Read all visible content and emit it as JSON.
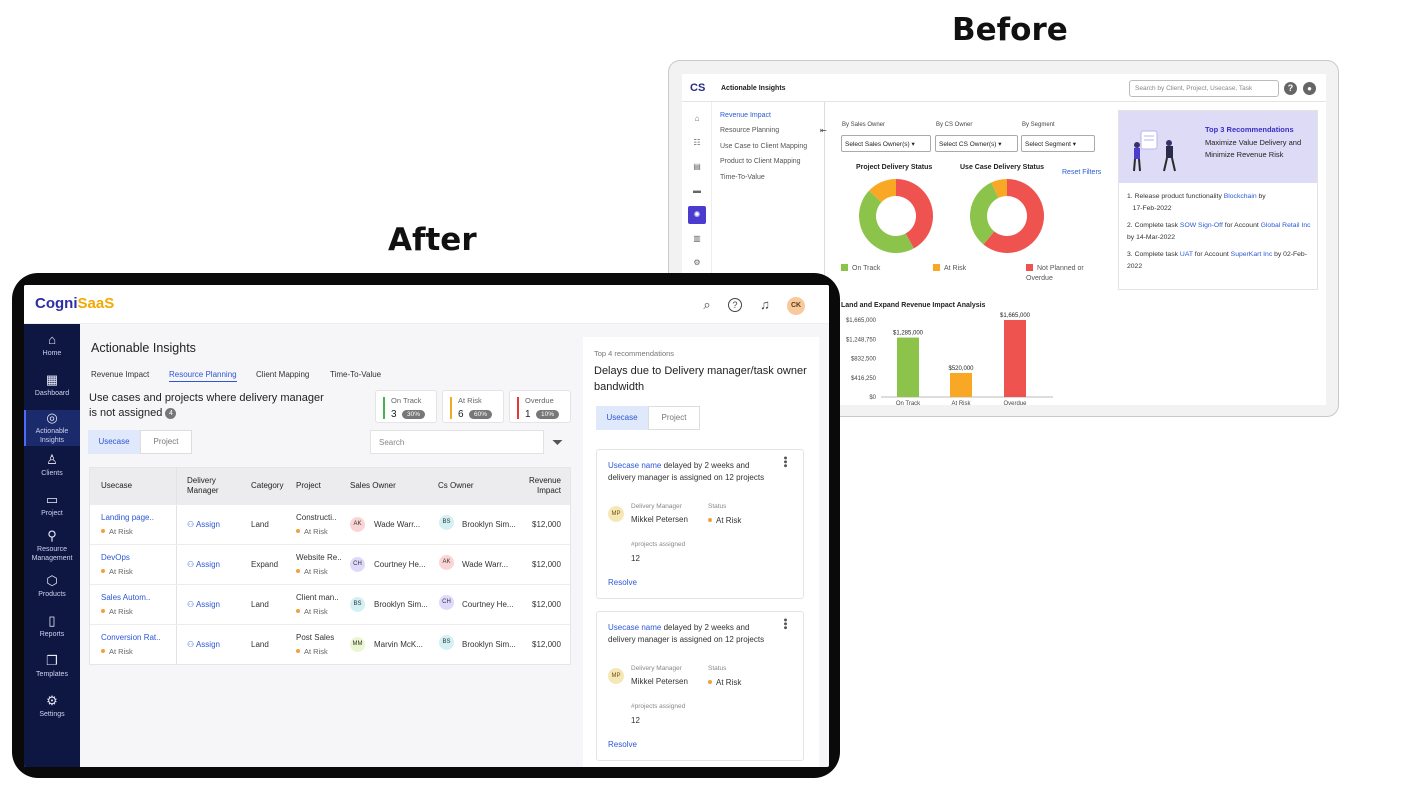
{
  "labels": {
    "before": "Before",
    "after": "After"
  },
  "before": {
    "logo": "CS",
    "title": "Actionable Insights",
    "search_placeholder": "Search by Client, Project, Usecase, Task",
    "help": "?",
    "nav": [
      "Revenue Impact",
      "Resource Planning",
      "Use Case to Client Mapping",
      "Product to Client Mapping",
      "Time-To-Value"
    ],
    "filters": [
      {
        "label": "By Sales Owner",
        "value": "Select Sales Owner(s)"
      },
      {
        "label": "By CS Owner",
        "value": "Select CS Owner(s)"
      },
      {
        "label": "By Segment",
        "value": "Select Segment"
      }
    ],
    "reset": "Reset Filters",
    "donut_titles": [
      "Project Delivery Status",
      "Use Case Delivery Status"
    ],
    "legend": [
      "On Track",
      "At Risk",
      "Not Planned or Overdue"
    ],
    "colors": {
      "on_track": "#8cc34a",
      "at_risk": "#f9a825",
      "overdue": "#ef5350"
    },
    "donuts": [
      {
        "on_track": 0.45,
        "at_risk": 0.13,
        "overdue": 0.42
      },
      {
        "on_track": 0.32,
        "at_risk": 0.07,
        "overdue": 0.61
      }
    ],
    "recommendations": {
      "title": "Top 3 Recommendations",
      "subtitle": "Maximize Value Delivery and Minimize Revenue Risk",
      "items": [
        {
          "n": "1.",
          "pre": "Release product functionality ",
          "link1": "Blockchain",
          "mid": " by",
          "link2": "",
          "post": "17-Feb-2022"
        },
        {
          "n": "2.",
          "pre": "Complete task ",
          "link1": "SOW Sign-Off",
          "mid": " for Account ",
          "link2": "Global Retail Inc",
          "post": " by 14-Mar-2022"
        },
        {
          "n": "3.",
          "pre": "Complete task ",
          "link1": "UAT",
          "mid": " for Account ",
          "link2": "SuperKart Inc",
          "post": " by 02-Feb-2022"
        }
      ]
    },
    "chart_data": {
      "type": "bar",
      "title": "Land and Expand Revenue Impact Analysis",
      "categories": [
        "On Track",
        "At Risk",
        "Overdue"
      ],
      "values": [
        1285000,
        520000,
        1665000
      ],
      "data_labels": [
        "$1,285,000",
        "$520,000",
        "$1,665,000"
      ],
      "y_ticks": [
        "$1,665,000",
        "$1,248,750",
        "$832,500",
        "$416,250",
        "$0"
      ],
      "ylim": [
        0,
        1665000
      ],
      "colors": [
        "#8cc34a",
        "#f9a825",
        "#ef5350"
      ]
    }
  },
  "after": {
    "logo_a": "Cogni",
    "logo_b": "SaaS",
    "avatar": "CK",
    "sidebar": [
      {
        "label": "Home",
        "icon": "⌂"
      },
      {
        "label": "Dashboard",
        "icon": "▦"
      },
      {
        "label": "Actionable Insights",
        "icon": "◎"
      },
      {
        "label": "Clients",
        "icon": "♙"
      },
      {
        "label": "Project",
        "icon": "▭"
      },
      {
        "label": "Resource Management",
        "icon": "⚲"
      },
      {
        "label": "Products",
        "icon": "⬡"
      },
      {
        "label": "Reports",
        "icon": "▯"
      },
      {
        "label": "Templates",
        "icon": "❐"
      },
      {
        "label": "Settings",
        "icon": "⚙"
      }
    ],
    "title": "Actionable Insights",
    "tabs": [
      "Revenue Impact",
      "Resource Planning",
      "Client Mapping",
      "Time-To-Value"
    ],
    "question": "Use cases and projects where delivery manager is not assigned",
    "question_count": "4",
    "stats": [
      {
        "label": "On Track",
        "value": "3",
        "pct": "30%",
        "color": "#4caf50"
      },
      {
        "label": "At Risk",
        "value": "6",
        "pct": "60%",
        "color": "#f5a623"
      },
      {
        "label": "Overdue",
        "value": "1",
        "pct": "10%",
        "color": "#e53935"
      }
    ],
    "toggle": [
      "Usecase",
      "Project"
    ],
    "search_placeholder": "Search",
    "columns": [
      "Usecase",
      "Delivery Manager",
      "Category",
      "Project",
      "Sales Owner",
      "Cs Owner",
      "Revenue Impact"
    ],
    "assign_label": "Assign",
    "rows": [
      {
        "usecase": "Landing page..",
        "status": "At Risk",
        "category": "Land",
        "project": "Constructi..",
        "pstatus": "At Risk",
        "so_i": "AK",
        "so": "Wade Warr...",
        "co_i": "BS",
        "co": "Brooklyn Sim...",
        "rev": "$12,000"
      },
      {
        "usecase": "DevOps",
        "status": "At Risk",
        "category": "Expand",
        "project": "Website Re..",
        "pstatus": "At Risk",
        "so_i": "CH",
        "so": "Courtney He...",
        "co_i": "AK",
        "co": "Wade Warr...",
        "rev": "$12,000"
      },
      {
        "usecase": "Sales Autom..",
        "status": "At Risk",
        "category": "Land",
        "project": "Client man..",
        "pstatus": "At Risk",
        "so_i": "BS",
        "so": "Brooklyn Sim...",
        "co_i": "CH",
        "co": "Courtney He...",
        "rev": "$12,000"
      },
      {
        "usecase": "Conversion Rat..",
        "status": "At Risk",
        "category": "Land",
        "project": "Post Sales",
        "pstatus": "At Risk",
        "so_i": "MM",
        "so": "Marvin McK...",
        "co_i": "BS",
        "co": "Brooklyn Sim...",
        "rev": "$12,000"
      }
    ],
    "recs": {
      "subtitle": "Top 4 recommendations",
      "title": "Delays due to Delivery manager/task owner bandwidth",
      "toggle": [
        "Usecase",
        "Project"
      ],
      "cards": [
        {
          "link": "Usecase name",
          "text": " delayed by 2 weeks and delivery manager is assigned on 12 projects",
          "initials": "MP",
          "dm_label": "Delivery Manager",
          "dm": "Mikkel Petersen",
          "status_label": "Status",
          "status": "At Risk",
          "count_label": "#projects assigned",
          "count": "12",
          "action": "Resolve"
        },
        {
          "link": "Usecase name",
          "text": " delayed by 2 weeks and delivery manager is assigned on 12 projects",
          "initials": "MP",
          "dm_label": "Delivery Manager",
          "dm": "Mikkel Petersen",
          "status_label": "Status",
          "status": "At Risk",
          "count_label": "#projects assigned",
          "count": "12",
          "action": "Resolve"
        }
      ]
    }
  }
}
